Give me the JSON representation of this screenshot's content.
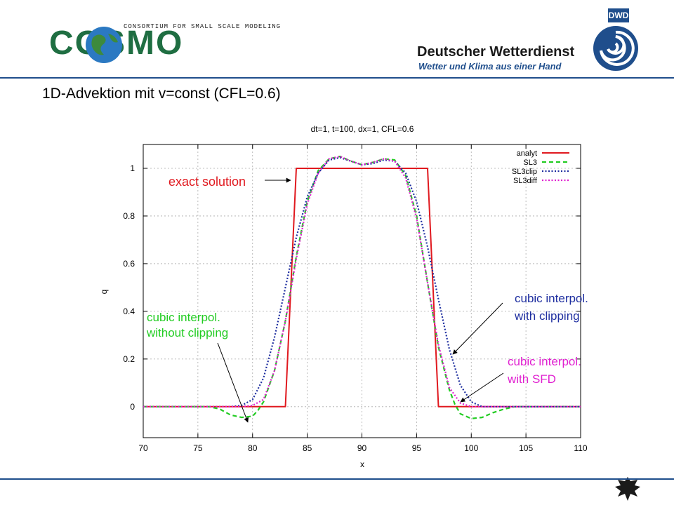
{
  "header": {
    "cosmo_tagline": "CONSORTIUM FOR SMALL SCALE MODELING",
    "cosmo_logo_text": "COSMO",
    "dwd_badge": "DWD",
    "dwd_name": "Deutscher Wetterdienst",
    "dwd_slogan": "Wetter und Klima aus einer Hand"
  },
  "slide": {
    "title": "1D-Advektion mit v=const (CFL=0.6)"
  },
  "colors": {
    "analyt": "#e0191f",
    "SL3": "#22cc22",
    "SL3clip": "#1f2fa0",
    "SL3diff": "#e020d0",
    "header_line": "#1f4e8c"
  },
  "annotations": {
    "exact": "exact solution",
    "sl3_line1": "cubic interpol.",
    "sl3_line2": "without clipping",
    "clip_line1": "cubic interpol.",
    "clip_line2": "with clipping",
    "sfd_line1": "cubic interpol.",
    "sfd_line2": "with SFD"
  },
  "chart_data": {
    "type": "line",
    "title": "dt=1, t=100, dx=1, CFL=0.6",
    "xlabel": "x",
    "ylabel": "q",
    "xlim": [
      70,
      110
    ],
    "ylim": [
      -0.13,
      1.1
    ],
    "xticks": [
      70,
      75,
      80,
      85,
      90,
      95,
      100,
      105,
      110
    ],
    "yticks": [
      0,
      0.2,
      0.4,
      0.6,
      0.8,
      1
    ],
    "grid": true,
    "legend_position": "top-right",
    "series": [
      {
        "name": "analyt",
        "style": "solid",
        "color": "#e0191f",
        "x": [
          70,
          83,
          84,
          96,
          97,
          110
        ],
        "y": [
          0,
          0,
          1,
          1,
          0,
          0
        ]
      },
      {
        "name": "SL3",
        "style": "dashed",
        "color": "#22cc22",
        "x": [
          70,
          76,
          77,
          78,
          79,
          80,
          80.5,
          81,
          82,
          83,
          84,
          85,
          86,
          87,
          88,
          89,
          90,
          91,
          92,
          93,
          94,
          95,
          96,
          97,
          98,
          98.5,
          99,
          100,
          101,
          102,
          103,
          104,
          110
        ],
        "y": [
          0,
          0,
          -0.01,
          -0.035,
          -0.045,
          -0.04,
          -0.015,
          0.02,
          0.15,
          0.36,
          0.63,
          0.86,
          0.99,
          1.04,
          1.05,
          1.03,
          1.015,
          1.025,
          1.04,
          1.035,
          0.97,
          0.8,
          0.52,
          0.25,
          0.07,
          0.01,
          -0.03,
          -0.05,
          -0.045,
          -0.025,
          -0.01,
          0,
          0
        ]
      },
      {
        "name": "SL3clip",
        "style": "dotted",
        "color": "#1f2fa0",
        "x": [
          70,
          78,
          79,
          80,
          81,
          82,
          83,
          84,
          85,
          86,
          87,
          88,
          89,
          90,
          91,
          92,
          93,
          94,
          95,
          96,
          97,
          98,
          99,
          100,
          101,
          110
        ],
        "y": [
          0,
          0,
          0.005,
          0.03,
          0.12,
          0.29,
          0.5,
          0.71,
          0.88,
          0.98,
          1.035,
          1.045,
          1.03,
          1.015,
          1.02,
          1.035,
          1.03,
          0.98,
          0.86,
          0.67,
          0.45,
          0.24,
          0.09,
          0.02,
          0,
          0
        ]
      },
      {
        "name": "SL3diff",
        "style": "dotted",
        "color": "#e020d0",
        "x": [
          70,
          79,
          80,
          81,
          82,
          83,
          84,
          85,
          86,
          87,
          88,
          89,
          90,
          91,
          92,
          93,
          94,
          95,
          96,
          97,
          98,
          99,
          100,
          110
        ],
        "y": [
          0,
          0,
          0.005,
          0.03,
          0.15,
          0.36,
          0.62,
          0.85,
          0.98,
          1.04,
          1.05,
          1.03,
          1.015,
          1.025,
          1.04,
          1.03,
          0.96,
          0.79,
          0.52,
          0.26,
          0.08,
          0.015,
          0,
          0
        ]
      }
    ]
  }
}
